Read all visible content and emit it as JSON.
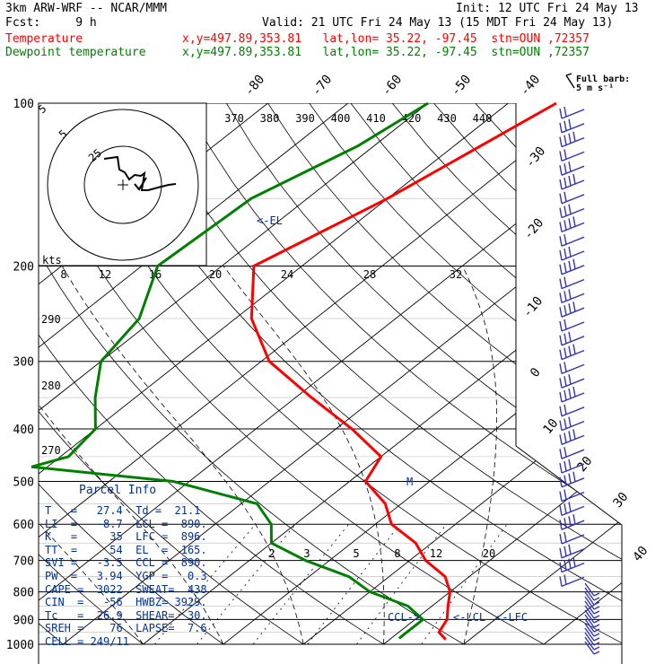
{
  "header": {
    "model": "3km ARW-WRF -- NCAR/MMM",
    "init": "Init: 12 UTC Fri 24 May 13",
    "fcst": "Fcst:     9 h",
    "valid": "Valid: 21 UTC Fri 24 May 13 (15 MDT Fri 24 May 13)",
    "temp_label": "Temperature",
    "temp_info": "x,y=497.89,353.81   lat,lon= 35.22, -97.45  stn=OUN ,72357",
    "dew_label": "Dewpoint temperature",
    "dew_info": "x,y=497.89,353.81   lat,lon= 35.22, -97.45  stn=OUN ,72357"
  },
  "colors": {
    "temperature": "#ff0000",
    "dewpoint": "#008000",
    "annotation": "#003399",
    "wind": "#3333bb"
  },
  "chart_data": {
    "type": "line",
    "title": "",
    "pressure_levels": [
      100,
      200,
      300,
      400,
      500,
      600,
      700,
      800,
      900,
      1000
    ],
    "isotherm_labels": [
      "-80",
      "-70",
      "-60",
      "-50",
      "-40",
      "-30",
      "-20",
      "-10",
      "0",
      "10",
      "20",
      "30",
      "40"
    ],
    "theta_labels": [
      "370",
      "380",
      "390",
      "400",
      "410",
      "420",
      "430",
      "440"
    ],
    "mixing_ratio_labels": [
      "2",
      "3",
      "5",
      "8",
      "12",
      "20"
    ],
    "hodo_speed_labels": [
      "8",
      "12",
      "16",
      "20",
      "24",
      "28",
      "32"
    ],
    "hodo_ring_labels": [
      "5",
      "25"
    ],
    "hodo_units": "kts",
    "left_theta_labels": [
      "290",
      "280",
      "270"
    ],
    "series": [
      {
        "name": "Temperature",
        "points": [
          [
            100,
            -44
          ],
          [
            150,
            -50
          ],
          [
            200,
            -56
          ],
          [
            250,
            -48
          ],
          [
            300,
            -39
          ],
          [
            350,
            -28
          ],
          [
            400,
            -18
          ],
          [
            450,
            -10
          ],
          [
            500,
            -8
          ],
          [
            550,
            -2
          ],
          [
            600,
            2
          ],
          [
            650,
            8
          ],
          [
            700,
            12
          ],
          [
            750,
            17
          ],
          [
            800,
            20
          ],
          [
            850,
            22
          ],
          [
            900,
            24
          ],
          [
            950,
            25
          ],
          [
            980,
            27
          ]
        ]
      },
      {
        "name": "Dewpoint temperature",
        "points": [
          [
            100,
            -60
          ],
          [
            120,
            -62
          ],
          [
            150,
            -67
          ],
          [
            200,
            -68
          ],
          [
            250,
            -62
          ],
          [
            300,
            -60
          ],
          [
            350,
            -55
          ],
          [
            400,
            -50
          ],
          [
            450,
            -49
          ],
          [
            470,
            -52
          ],
          [
            500,
            -32
          ],
          [
            550,
            -18
          ],
          [
            600,
            -13
          ],
          [
            650,
            -10
          ],
          [
            700,
            -3
          ],
          [
            750,
            5
          ],
          [
            800,
            10
          ],
          [
            850,
            17
          ],
          [
            900,
            21
          ],
          [
            950,
            21
          ],
          [
            975,
            21
          ]
        ]
      }
    ],
    "annotations": [
      "<-EL",
      "CCL->",
      "<-LCL",
      "<-LFC",
      "M"
    ]
  },
  "parcel_info": {
    "title": "Parcel Info",
    "lines": [
      "T   =   27.4  Td =  21.1",
      "LI  =   -8.7  LCL =  890.",
      "K   =     35  LFC =  896.",
      "TT  =     54  EL  =  165.",
      "SVI =   -3.5  CCL =  890.",
      "PW  =   3.94  YGP =   0.3",
      "CAPE =  3022  SWEAT=  438",
      "CIN  =   -56  HWBZ= 3929.",
      "Tc   =  26.9  SHEAR=  30.",
      "SREH =    76  LAPSE=  7.6",
      "CELL = 249/11"
    ]
  },
  "wind_legend": {
    "line1": "Full barb:",
    "line2": "5 m s⁻¹"
  }
}
